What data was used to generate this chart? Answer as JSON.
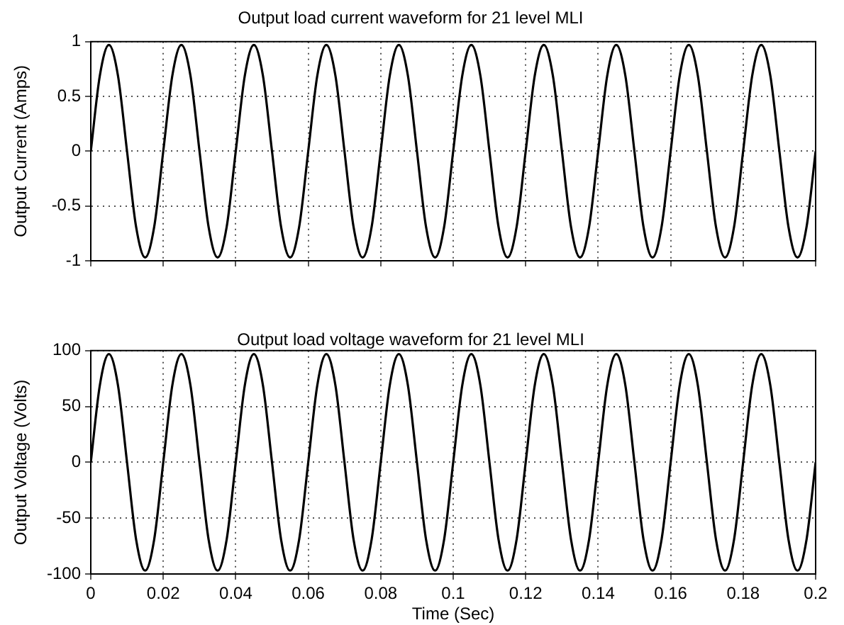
{
  "chart_data": [
    {
      "type": "line",
      "title": "Output load current waveform for 21 level MLI",
      "ylabel": "Output Current (Amps)",
      "xlim": [
        0,
        0.2
      ],
      "xticks": [
        0,
        0.02,
        0.04,
        0.06,
        0.08,
        0.1,
        0.12,
        0.14,
        0.16,
        0.18,
        0.2
      ],
      "ylim": [
        -1,
        1
      ],
      "yticks": [
        -1,
        -0.5,
        0,
        0.5,
        1
      ],
      "grid": true,
      "tick_labels": "y",
      "series": [
        {
          "color": "#000000",
          "x": [
            0,
            0.0025,
            0.005,
            0.0075,
            0.01,
            0.0125,
            0.015,
            0.0175,
            0.02,
            0.0225,
            0.025,
            0.0275,
            0.03,
            0.0325,
            0.035,
            0.0375,
            0.04,
            0.0425,
            0.045,
            0.0475,
            0.05,
            0.0525,
            0.055,
            0.0575,
            0.06,
            0.0625,
            0.065,
            0.0675,
            0.07,
            0.0725,
            0.075,
            0.0775,
            0.08,
            0.0825,
            0.085,
            0.0875,
            0.09,
            0.0925,
            0.095,
            0.0975,
            0.1,
            0.1025,
            0.105,
            0.1075,
            0.11,
            0.1125,
            0.115,
            0.1175,
            0.12,
            0.1225,
            0.125,
            0.1275,
            0.13,
            0.1325,
            0.135,
            0.1375,
            0.14,
            0.1425,
            0.145,
            0.1475,
            0.15,
            0.1525,
            0.155,
            0.1575,
            0.16,
            0.1625,
            0.165,
            0.1675,
            0.17,
            0.1725,
            0.175,
            0.1775,
            0.18,
            0.1825,
            0.185,
            0.1875,
            0.19,
            0.1925,
            0.195,
            0.1975,
            0.2
          ],
          "values": [
            0,
            0.69,
            0.97,
            0.69,
            0,
            -0.69,
            -0.97,
            -0.69,
            0,
            0.69,
            0.97,
            0.69,
            0,
            -0.69,
            -0.97,
            -0.69,
            0,
            0.69,
            0.97,
            0.69,
            0,
            -0.69,
            -0.97,
            -0.69,
            0,
            0.69,
            0.97,
            0.69,
            0,
            -0.69,
            -0.97,
            -0.69,
            0,
            0.69,
            0.97,
            0.69,
            0,
            -0.69,
            -0.97,
            -0.69,
            0,
            0.69,
            0.97,
            0.69,
            0,
            -0.69,
            -0.97,
            -0.69,
            0,
            0.69,
            0.97,
            0.69,
            0,
            -0.69,
            -0.97,
            -0.69,
            0,
            0.69,
            0.97,
            0.69,
            0,
            -0.69,
            -0.97,
            -0.69,
            0,
            0.69,
            0.97,
            0.69,
            0,
            -0.69,
            -0.97,
            -0.69,
            0,
            0.69,
            0.97,
            0.69,
            0,
            -0.69,
            -0.97,
            -0.69,
            0
          ]
        }
      ]
    },
    {
      "type": "line",
      "title": "Output load voltage waveform for 21 level MLI",
      "xlabel": "Time (Sec)",
      "ylabel": "Output Voltage (Volts)",
      "xlim": [
        0,
        0.2
      ],
      "xticks": [
        0,
        0.02,
        0.04,
        0.06,
        0.08,
        0.1,
        0.12,
        0.14,
        0.16,
        0.18,
        0.2
      ],
      "ylim": [
        -100,
        100
      ],
      "yticks": [
        -100,
        -50,
        0,
        50,
        100
      ],
      "grid": true,
      "series": [
        {
          "color": "#000000",
          "x": [
            0,
            0.0025,
            0.005,
            0.0075,
            0.01,
            0.0125,
            0.015,
            0.0175,
            0.02,
            0.0225,
            0.025,
            0.0275,
            0.03,
            0.0325,
            0.035,
            0.0375,
            0.04,
            0.0425,
            0.045,
            0.0475,
            0.05,
            0.0525,
            0.055,
            0.0575,
            0.06,
            0.0625,
            0.065,
            0.0675,
            0.07,
            0.0725,
            0.075,
            0.0775,
            0.08,
            0.0825,
            0.085,
            0.0875,
            0.09,
            0.0925,
            0.095,
            0.0975,
            0.1,
            0.1025,
            0.105,
            0.1075,
            0.11,
            0.1125,
            0.115,
            0.1175,
            0.12,
            0.1225,
            0.125,
            0.1275,
            0.13,
            0.1325,
            0.135,
            0.1375,
            0.14,
            0.1425,
            0.145,
            0.1475,
            0.15,
            0.1525,
            0.155,
            0.1575,
            0.16,
            0.1625,
            0.165,
            0.1675,
            0.17,
            0.1725,
            0.175,
            0.1775,
            0.18,
            0.1825,
            0.185,
            0.1875,
            0.19,
            0.1925,
            0.195,
            0.1975,
            0.2
          ],
          "values": [
            0,
            69,
            97,
            69,
            0,
            -69,
            -97,
            -69,
            0,
            69,
            97,
            69,
            0,
            -69,
            -97,
            -69,
            0,
            69,
            97,
            69,
            0,
            -69,
            -97,
            -69,
            0,
            69,
            97,
            69,
            0,
            -69,
            -97,
            -69,
            0,
            69,
            97,
            69,
            0,
            -69,
            -97,
            -69,
            0,
            69,
            97,
            69,
            0,
            -69,
            -97,
            -69,
            0,
            69,
            97,
            69,
            0,
            -69,
            -97,
            -69,
            0,
            69,
            97,
            69,
            0,
            -69,
            -97,
            -69,
            0,
            69,
            97,
            69,
            0,
            -69,
            -97,
            -69,
            0,
            69,
            97,
            69,
            0,
            -69,
            -97,
            -69,
            0
          ]
        }
      ]
    }
  ]
}
